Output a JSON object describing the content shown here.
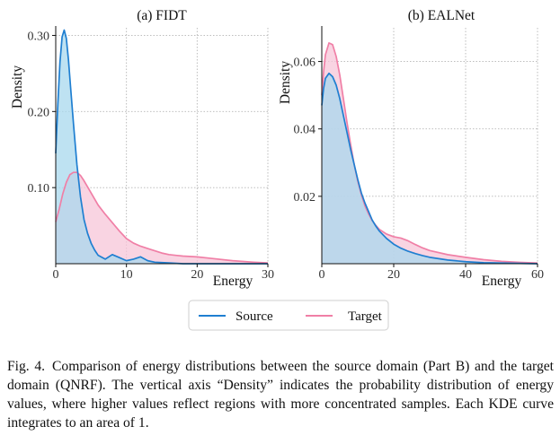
{
  "figure": {
    "legend": {
      "items": [
        {
          "label": "Source",
          "color": "#1f7fd1"
        },
        {
          "label": "Target",
          "color": "#f07fa6"
        }
      ]
    },
    "caption": {
      "label": "Fig. 4.",
      "text": "Comparison of energy distributions between the source domain (Part B) and the target domain (QNRF). The vertical axis “Density” indicates the probability distribution of energy values, where higher values reflect regions with more concentrated samples. Each KDE curve integrates to an area of 1."
    }
  },
  "chart_data": [
    {
      "type": "area",
      "title": "(a) FIDT",
      "xlabel": "Energy",
      "ylabel": "Density",
      "xlim": [
        0,
        30
      ],
      "ylim": [
        0,
        0.31
      ],
      "xticks": [
        0,
        10,
        20,
        30
      ],
      "yticks": [
        0.1,
        0.2,
        0.3
      ],
      "ytick_labels": [
        "0.10",
        "0.20",
        "0.30"
      ],
      "grid": true,
      "series": [
        {
          "name": "Source",
          "color": "#1f7fd1",
          "fill": "#a8d8ee",
          "x": [
            0,
            0.3,
            0.6,
            0.9,
            1.2,
            1.5,
            1.8,
            2.1,
            2.5,
            3.0,
            3.5,
            4.0,
            4.5,
            5.0,
            5.5,
            6.0,
            7.0,
            8.0,
            9.0,
            10.0,
            11.0,
            12.0,
            13.0,
            14.0,
            16.0,
            18.0,
            20.0,
            22.0,
            25.0,
            28.0,
            30.0
          ],
          "y": [
            0.145,
            0.21,
            0.265,
            0.298,
            0.307,
            0.296,
            0.268,
            0.232,
            0.185,
            0.13,
            0.088,
            0.058,
            0.04,
            0.027,
            0.018,
            0.011,
            0.006,
            0.012,
            0.008,
            0.004,
            0.006,
            0.009,
            0.004,
            0.002,
            0.001,
            0,
            0,
            0,
            0,
            0,
            0
          ]
        },
        {
          "name": "Target",
          "color": "#f07fa6",
          "fill": "#f7c6d8",
          "x": [
            0,
            0.5,
            1.0,
            1.5,
            2.0,
            2.5,
            3.0,
            3.5,
            4.0,
            5.0,
            6.0,
            7.0,
            8.0,
            9.0,
            10.0,
            11.0,
            12.0,
            13.0,
            14.0,
            15.0,
            16.0,
            17.0,
            18.0,
            20.0,
            22.0,
            25.0,
            28.0,
            30.0
          ],
          "y": [
            0.055,
            0.072,
            0.092,
            0.107,
            0.117,
            0.12,
            0.12,
            0.116,
            0.109,
            0.093,
            0.077,
            0.065,
            0.054,
            0.043,
            0.033,
            0.027,
            0.023,
            0.02,
            0.017,
            0.014,
            0.012,
            0.011,
            0.01,
            0.009,
            0.007,
            0.004,
            0.002,
            0.001
          ]
        }
      ]
    },
    {
      "type": "area",
      "title": "(b) EALNet",
      "xlabel": "Energy",
      "ylabel": "Density",
      "xlim": [
        0,
        60
      ],
      "ylim": [
        0,
        0.07
      ],
      "xticks": [
        0,
        20,
        40,
        60
      ],
      "yticks": [
        0.02,
        0.04,
        0.06
      ],
      "ytick_labels": [
        "0.02",
        "0.04",
        "0.06"
      ],
      "grid": true,
      "series": [
        {
          "name": "Source",
          "color": "#1f7fd1",
          "fill": "#a8d8ee",
          "x": [
            0,
            0.5,
            1,
            2,
            3,
            4,
            5,
            6,
            7,
            8,
            9,
            10,
            11,
            12,
            13,
            14,
            15,
            16,
            18,
            20,
            22,
            24,
            26,
            28,
            30,
            35,
            40,
            45,
            50,
            55,
            60
          ],
          "y": [
            0.047,
            0.052,
            0.055,
            0.0565,
            0.0555,
            0.053,
            0.049,
            0.044,
            0.039,
            0.034,
            0.0295,
            0.025,
            0.021,
            0.018,
            0.0155,
            0.013,
            0.0112,
            0.0097,
            0.0075,
            0.0058,
            0.0046,
            0.0037,
            0.003,
            0.0024,
            0.0019,
            0.0011,
            0.0006,
            0.0003,
            0.0002,
            0.0001,
            0
          ]
        },
        {
          "name": "Target",
          "color": "#f07fa6",
          "fill": "#f7c6d8",
          "x": [
            0,
            0.5,
            1,
            2,
            3,
            4,
            5,
            6,
            7,
            8,
            9,
            10,
            11,
            12,
            13,
            14,
            15,
            16,
            18,
            20,
            22,
            24,
            26,
            28,
            30,
            35,
            40,
            45,
            50,
            55,
            60
          ],
          "y": [
            0.05,
            0.057,
            0.062,
            0.0655,
            0.065,
            0.0615,
            0.056,
            0.049,
            0.042,
            0.0355,
            0.0295,
            0.0245,
            0.0205,
            0.0172,
            0.0148,
            0.0128,
            0.0114,
            0.0102,
            0.0088,
            0.008,
            0.0076,
            0.0068,
            0.0057,
            0.0047,
            0.0039,
            0.0027,
            0.0019,
            0.0012,
            0.0007,
            0.0004,
            0.0002
          ]
        }
      ]
    }
  ]
}
